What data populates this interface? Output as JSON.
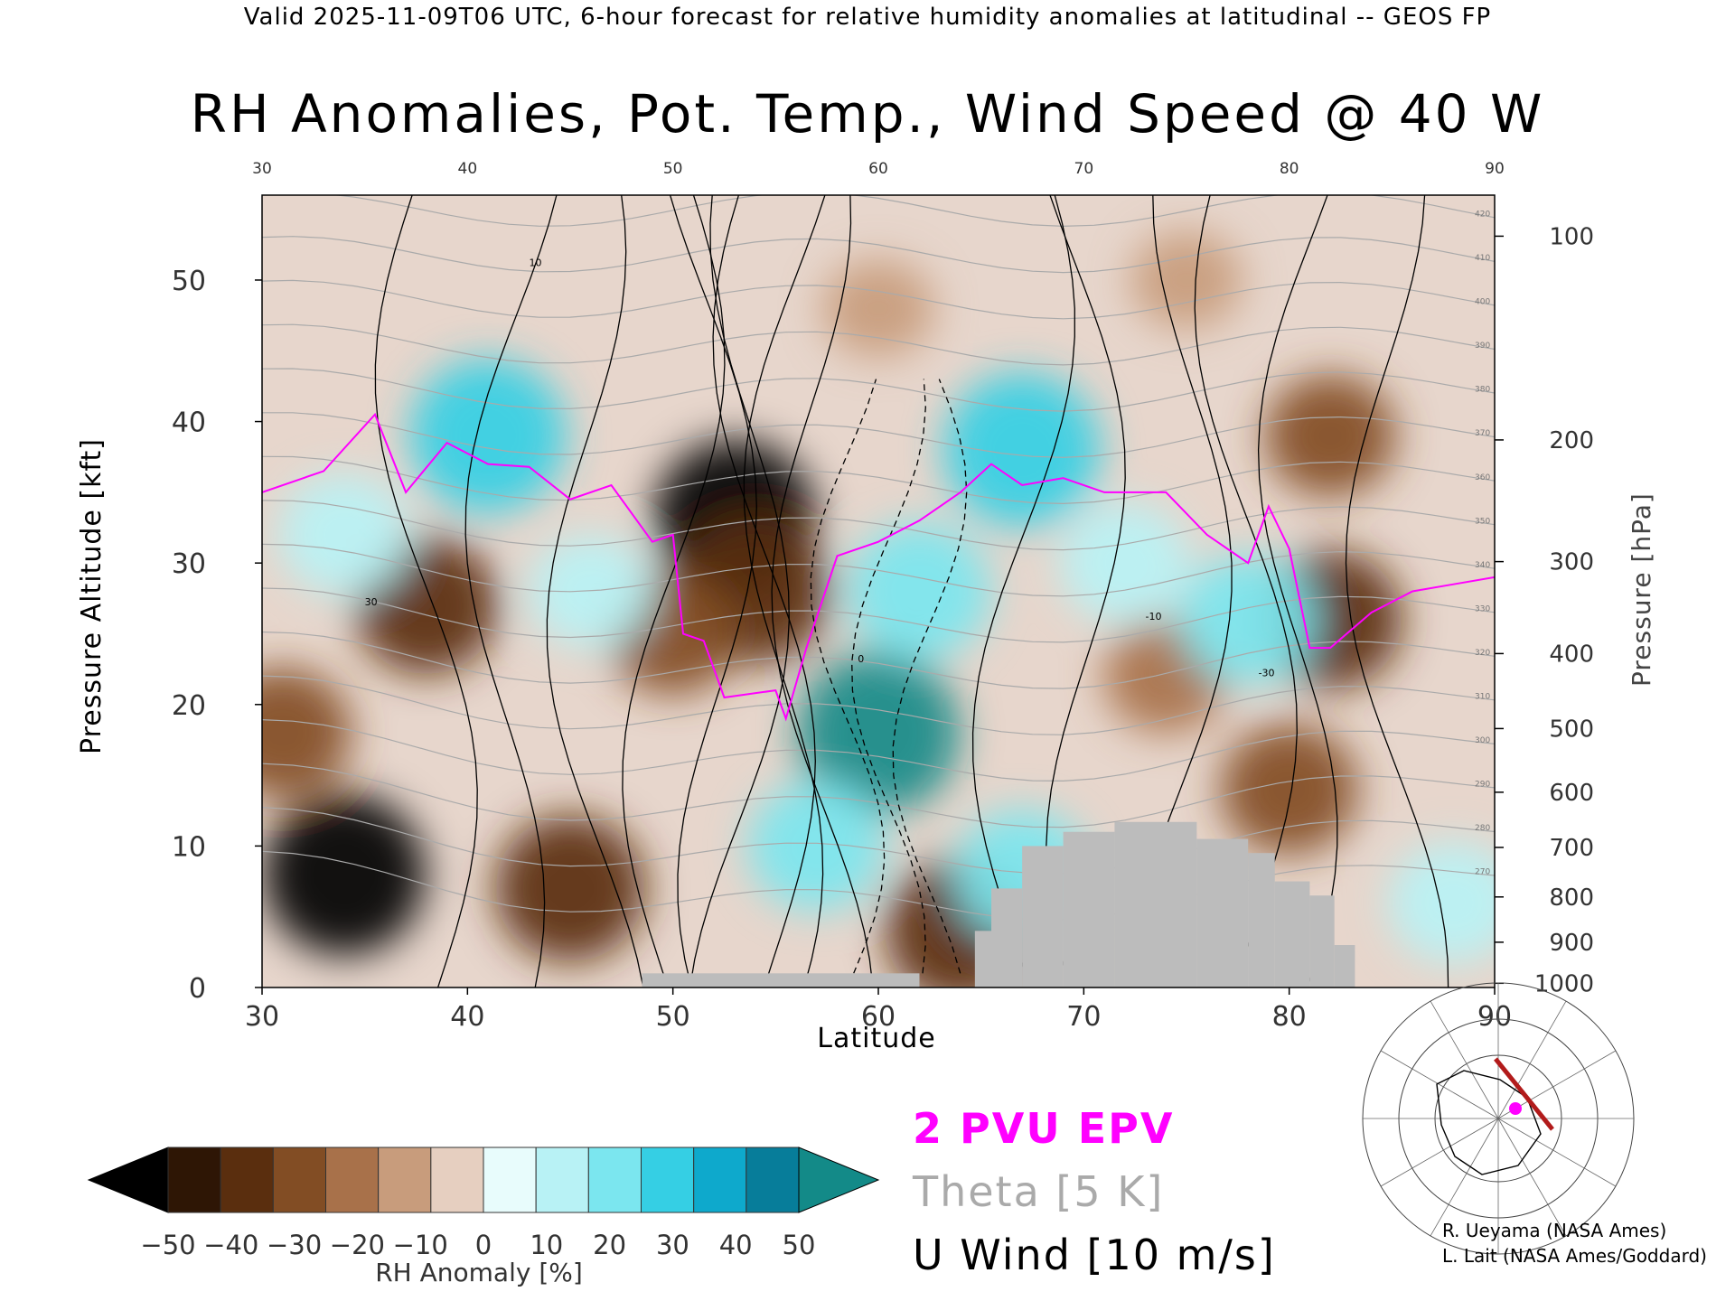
{
  "header": "Valid 2025-11-09T06 UTC, 6-hour forecast for relative humidity anomalies at latitudinal -- GEOS FP",
  "colors": {
    "epv": "#ff00ff",
    "theta": "#aaaaaa",
    "wind": "#000000",
    "terrain": "#bcbcbc"
  },
  "chart_data": {
    "type": "heatmap",
    "title": "RH Anomalies, Pot. Temp., Wind Speed @ 40 W",
    "xlabel": "Latitude",
    "ylabel": "Pressure Altitude [kft]",
    "y2label": "Pressure [hPa]",
    "xlim": [
      30,
      90
    ],
    "ylim": [
      0,
      56
    ],
    "x_ticks": [
      "30",
      "40",
      "50",
      "60",
      "70",
      "80",
      "90"
    ],
    "y_ticks": [
      "0",
      "10",
      "20",
      "30",
      "40",
      "50"
    ],
    "pressure_ticks": [
      {
        "hpa": "100",
        "kft": 53.1
      },
      {
        "hpa": "200",
        "kft": 38.7
      },
      {
        "hpa": "300",
        "kft": 30.1
      },
      {
        "hpa": "400",
        "kft": 23.6
      },
      {
        "hpa": "500",
        "kft": 18.3
      },
      {
        "hpa": "600",
        "kft": 13.8
      },
      {
        "hpa": "700",
        "kft": 9.9
      },
      {
        "hpa": "800",
        "kft": 6.4
      },
      {
        "hpa": "900",
        "kft": 3.2
      },
      {
        "hpa": "1000",
        "kft": 0.3
      }
    ],
    "rh_blobs": [
      {
        "lat": 53,
        "kft": 33,
        "value": -50
      },
      {
        "lat": 34,
        "kft": 8,
        "value": -50
      },
      {
        "lat": 54,
        "kft": 28,
        "value": -40
      },
      {
        "lat": 38,
        "kft": 27,
        "value": -35
      },
      {
        "lat": 45,
        "kft": 7,
        "value": -40
      },
      {
        "lat": 31,
        "kft": 18,
        "value": -30
      },
      {
        "lat": 82,
        "kft": 26,
        "value": -35
      },
      {
        "lat": 80,
        "kft": 14,
        "value": -30
      },
      {
        "lat": 82,
        "kft": 39,
        "value": -25
      },
      {
        "lat": 50,
        "kft": 25,
        "value": -25
      },
      {
        "lat": 74,
        "kft": 22,
        "value": -20
      },
      {
        "lat": 64,
        "kft": 4,
        "value": -40
      },
      {
        "lat": 60,
        "kft": 18,
        "value": 50
      },
      {
        "lat": 62,
        "kft": 28,
        "value": 35
      },
      {
        "lat": 67,
        "kft": 38,
        "value": 45
      },
      {
        "lat": 41,
        "kft": 39,
        "value": 45
      },
      {
        "lat": 57,
        "kft": 10,
        "value": 30
      },
      {
        "lat": 46,
        "kft": 28,
        "value": 20
      },
      {
        "lat": 34,
        "kft": 32,
        "value": 25
      },
      {
        "lat": 72,
        "kft": 30,
        "value": 25
      },
      {
        "lat": 78,
        "kft": 26,
        "value": 30
      },
      {
        "lat": 88,
        "kft": 6,
        "value": 25
      },
      {
        "lat": 67,
        "kft": 8,
        "value": 30
      },
      {
        "lat": 60,
        "kft": 48,
        "value": -10
      },
      {
        "lat": 75,
        "kft": 50,
        "value": -10
      }
    ],
    "epv_2pvu": [
      [
        30,
        35
      ],
      [
        33,
        36.5
      ],
      [
        35.5,
        40.5
      ],
      [
        37,
        35
      ],
      [
        39,
        38.5
      ],
      [
        41,
        37
      ],
      [
        43,
        36.8
      ],
      [
        45,
        34.5
      ],
      [
        47,
        35.5
      ],
      [
        49,
        31.5
      ],
      [
        50,
        32
      ],
      [
        50.5,
        25
      ],
      [
        51.5,
        24.5
      ],
      [
        52.5,
        20.5
      ],
      [
        55,
        21
      ],
      [
        55.5,
        19
      ],
      [
        56.5,
        24
      ],
      [
        58,
        30.5
      ],
      [
        60,
        31.5
      ],
      [
        62,
        33
      ],
      [
        64,
        35
      ],
      [
        65.5,
        37
      ],
      [
        67,
        35.5
      ],
      [
        69,
        36
      ],
      [
        71,
        35
      ],
      [
        74,
        35
      ],
      [
        76,
        32
      ],
      [
        78,
        30
      ],
      [
        79,
        34
      ],
      [
        80,
        31
      ],
      [
        81,
        24
      ],
      [
        82,
        24
      ],
      [
        84,
        26.5
      ],
      [
        86,
        28
      ],
      [
        88,
        28.5
      ],
      [
        90,
        29
      ]
    ],
    "theta_labels": [
      "420",
      "410",
      "400",
      "390",
      "380",
      "370",
      "360",
      "350",
      "340",
      "330",
      "320",
      "310",
      "300",
      "290",
      "280",
      "270"
    ],
    "u_wind_labels": [
      "10",
      "30",
      "0",
      "-10",
      "-30"
    ],
    "terrain": [
      {
        "lat0": 48.5,
        "lat1": 62,
        "kft": 1
      },
      {
        "lat0": 64.7,
        "lat1": 66,
        "kft": 4
      },
      {
        "lat0": 65.5,
        "lat1": 67,
        "kft": 7
      },
      {
        "lat0": 67,
        "lat1": 69,
        "kft": 10
      },
      {
        "lat0": 69,
        "lat1": 71.5,
        "kft": 11
      },
      {
        "lat0": 71.5,
        "lat1": 75.5,
        "kft": 11.7
      },
      {
        "lat0": 75.5,
        "lat1": 78,
        "kft": 10.5
      },
      {
        "lat0": 78,
        "lat1": 79.3,
        "kft": 9.5
      },
      {
        "lat0": 79.3,
        "lat1": 81,
        "kft": 7.5
      },
      {
        "lat0": 81,
        "lat1": 82.2,
        "kft": 6.5
      },
      {
        "lat0": 82.2,
        "lat1": 83.2,
        "kft": 3
      }
    ],
    "colorbar": {
      "label": "RH Anomaly [%]",
      "ticks": [
        "−50",
        "−40",
        "−30",
        "−20",
        "−10",
        "0",
        "10",
        "20",
        "30",
        "40",
        "50"
      ],
      "colors": [
        "#000000",
        "#2e1605",
        "#5a2e0e",
        "#824d24",
        "#a8714a",
        "#c89c7c",
        "#e6cfc0",
        "#e8fcfc",
        "#b8f2f5",
        "#7be6ef",
        "#35cfe4",
        "#0ea9cc",
        "#077d9a",
        "#138a88"
      ]
    }
  },
  "legend": {
    "epv": "2 PVU EPV",
    "theta": "Theta [5 K]",
    "wind": "U Wind [10 m/s]"
  },
  "credits": [
    "R. Ueyama (NASA Ames)",
    "L. Lait (NASA Ames/Goddard)"
  ]
}
